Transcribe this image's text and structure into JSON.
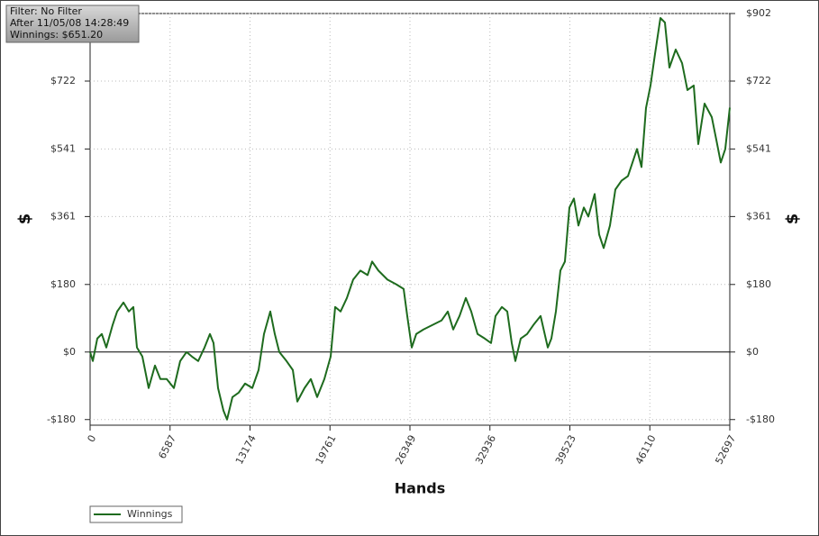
{
  "chart_data": {
    "type": "line",
    "annotations": [
      "Filter: No Filter",
      "After 11/05/08 14:28:49",
      "Winnings: $651.20"
    ],
    "xlabel": "Hands",
    "ylabel": "$",
    "xlim": [
      0,
      52697
    ],
    "xticks": [
      0,
      6587,
      13174,
      19761,
      26349,
      32936,
      39523,
      46110,
      52697
    ],
    "ylim": [
      -195,
      902
    ],
    "yticks": [
      {
        "value": -180,
        "label": "-$180"
      },
      {
        "value": 0,
        "label": "$0"
      },
      {
        "value": 180,
        "label": "$180"
      },
      {
        "value": 361,
        "label": "$361"
      },
      {
        "value": 541,
        "label": "$541"
      },
      {
        "value": 722,
        "label": "$722"
      },
      {
        "value": 902,
        "label": "$902"
      }
    ],
    "grid": true,
    "legend": "bottom-left",
    "x": [
      0,
      223,
      594,
      965,
      1336,
      1855,
      2227,
      2746,
      3191,
      3563,
      3859,
      4305,
      4824,
      5344,
      5789,
      6309,
      6903,
      7422,
      7942,
      8387,
      8906,
      9426,
      9871,
      10168,
      10539,
      10984,
      11281,
      11727,
      12246,
      12766,
      13360,
      13879,
      14325,
      14844,
      15215,
      15586,
      16180,
      16700,
      17071,
      17665,
      18184,
      18704,
      19297,
      19817,
      20188,
      20633,
      21153,
      21672,
      22266,
      22860,
      23231,
      23750,
      24493,
      25235,
      25829,
      26126,
      26497,
      26868,
      27462,
      28204,
      28946,
      29466,
      29911,
      30431,
      30950,
      31395,
      31915,
      32508,
      33028,
      33399,
      33919,
      34364,
      34735,
      35032,
      35477,
      35997,
      36516,
      37110,
      37704,
      38000,
      38371,
      38742,
      39113,
      39485,
      39856,
      40227,
      40672,
      41043,
      41563,
      41934,
      42305,
      42825,
      43270,
      43790,
      44309,
      44680,
      45051,
      45422,
      45793,
      46164,
      46535,
      46981,
      47352,
      47723,
      48242,
      48762,
      49207,
      49727,
      50098,
      50617,
      51211,
      51582,
      51953,
      52324,
      52697
    ],
    "series": [
      {
        "name": "Winnings",
        "color": "#1e6b1e",
        "values": [
          0,
          -24,
          36,
          48,
          12,
          72,
          108,
          132,
          108,
          120,
          12,
          -12,
          -96,
          -36,
          -72,
          -72,
          -96,
          -24,
          0,
          -12,
          -24,
          12,
          48,
          24,
          -96,
          -156,
          -180,
          -120,
          -108,
          -84,
          -96,
          -48,
          48,
          108,
          48,
          0,
          -24,
          -48,
          -132,
          -96,
          -72,
          -120,
          -72,
          -12,
          120,
          108,
          144,
          193,
          217,
          205,
          241,
          217,
          193,
          180,
          168,
          96,
          12,
          48,
          60,
          72,
          84,
          108,
          60,
          96,
          144,
          108,
          48,
          36,
          24,
          96,
          120,
          108,
          24,
          -24,
          36,
          48,
          72,
          96,
          12,
          36,
          108,
          217,
          241,
          385,
          409,
          337,
          385,
          361,
          421,
          313,
          277,
          337,
          433,
          457,
          469,
          505,
          541,
          493,
          650,
          710,
          794,
          890,
          878,
          758,
          806,
          770,
          698,
          710,
          554,
          662,
          626,
          566,
          505,
          541,
          651.2
        ]
      }
    ]
  }
}
